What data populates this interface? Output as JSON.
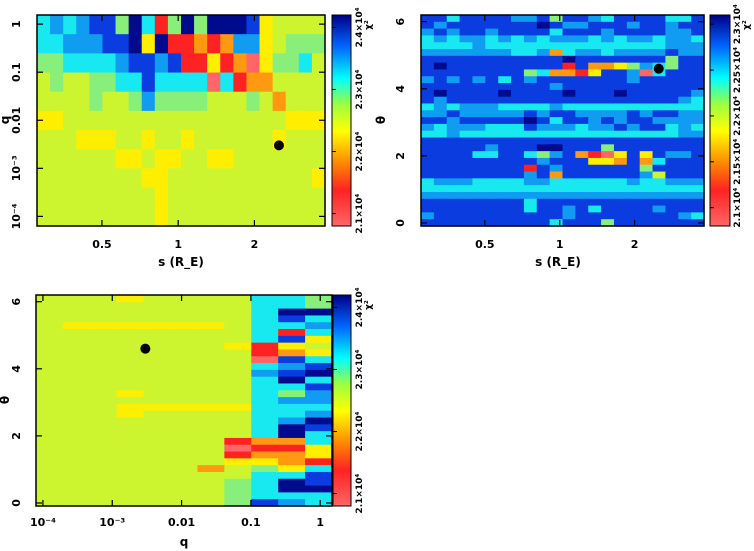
{
  "chart_data": [
    {
      "type": "heatmap",
      "id": "tl",
      "xlabel": "s (R_E)",
      "ylabel": "q",
      "xscale": "log",
      "yscale": "log",
      "xlim": [
        0.277,
        3.8
      ],
      "ylim_log10": [
        -4.2,
        0.19
      ],
      "xticks": [
        {
          "v": 0.5,
          "label": "0.5"
        },
        {
          "v": 1,
          "label": "1"
        },
        {
          "v": 2,
          "label": "2"
        }
      ],
      "yticks": [
        {
          "v": 1,
          "label": "1"
        },
        {
          "v": 0.1,
          "label": "0.1"
        },
        {
          "v": 0.01,
          "label": "0.01"
        },
        {
          "v": 0.001,
          "label": "10⁻³"
        },
        {
          "v": 0.0001,
          "label": "10⁻⁴"
        }
      ],
      "colorbar": {
        "label": "χ²",
        "ticks": [
          {
            "v": 2.1,
            "label": "2.1×10⁴"
          },
          {
            "v": 2.2,
            "label": "2.2×10⁴"
          },
          {
            "v": 2.3,
            "label": "2.3×10⁴"
          },
          {
            "v": 2.4,
            "label": "2.4×10⁴"
          }
        ],
        "range": [
          2.08,
          2.42
        ]
      },
      "levels_chi2_1e4": [
        2.1,
        2.13,
        2.17,
        2.21,
        2.24,
        2.27,
        2.31,
        2.34,
        2.37,
        2.41
      ],
      "grid_rows_top_to_bottom": [
        "6767885961595999834444",
        "6677788939112127734555",
        "5566667887811312035564",
        "4544556686666061224444",
        "4444544575555444542444",
        "3344444444444444444333",
        "4443334434434444443444",
        "4444443343344334444444",
        "4444444433444444444443",
        "4444444443444444444444",
        "4444444443444444444444"
      ],
      "best_fit": {
        "x": 2.5,
        "y": 0.003
      }
    },
    {
      "type": "heatmap",
      "id": "tr",
      "xlabel": "s (R_E)",
      "ylabel": "θ",
      "xscale": "log",
      "yscale": "linear",
      "xlim": [
        0.277,
        3.8
      ],
      "ylim": [
        -0.09,
        6.2
      ],
      "xticks": [
        {
          "v": 0.5,
          "label": "0.5"
        },
        {
          "v": 1,
          "label": "1"
        },
        {
          "v": 2,
          "label": "2"
        }
      ],
      "yticks": [
        {
          "v": 0,
          "label": "0"
        },
        {
          "v": 2,
          "label": "2"
        },
        {
          "v": 4,
          "label": "4"
        },
        {
          "v": 6,
          "label": "6"
        }
      ],
      "colorbar": {
        "label": "χ²",
        "ticks": [
          {
            "v": 2.1,
            "label": "2.1×10⁴"
          },
          {
            "v": 2.15,
            "label": "2.15×10⁴"
          },
          {
            "v": 2.2,
            "label": "2.2×10⁴"
          },
          {
            "v": 2.25,
            "label": "2.25×10⁴"
          },
          {
            "v": 2.3,
            "label": "2.3×10⁴"
          }
        ],
        "range": [
          2.08,
          2.31
        ]
      },
      "levels_chi2_1e4": [
        2.09,
        2.11,
        2.15,
        2.18,
        2.2,
        2.22,
        2.25,
        2.27,
        2.29,
        2.3
      ],
      "grid_rows_top_to_bottom": [
        "8868888778588768888668",
        "8788888889877888788788",
        "7878878888688878888778",
        "6767767676777676776776",
        "6666766666666666666777",
        "7777777667267767777877",
        "8888888888898888888588",
        "8988888888818223576588",
        "8888888856221388706888",
        "7878786878888888788888",
        "8888888888788888888888",
        "8988889888898889888887",
        "8788888888888888888876",
        "6767776666766666666666",
        "7787777787887777878877",
        "8878888898688787887777",
        "7677766687776778788676",
        "6676666666666666666677",
        "8888888888888888888888",
        "8888878889988858888888",
        "8888668865782103838778",
        "8888888887888332826888",
        "8888888818788888858888",
        "8888888878288888874888",
        "6777666677666666766777",
        "6666666666666666666666",
        "7777777777777777777777",
        "8888888868888888888888",
        "8888888868878688887888",
        "7888888888878888888876",
        "8888888888688858888888"
      ],
      "best_fit": {
        "x": 2.5,
        "y": 4.6
      }
    },
    {
      "type": "heatmap",
      "id": "bl",
      "xlabel": "q",
      "ylabel": "θ",
      "xscale": "log",
      "yscale": "linear",
      "xlim_log10": [
        -4.1,
        0.17
      ],
      "ylim": [
        -0.09,
        6.2
      ],
      "xticks": [
        {
          "v": 0.0001,
          "label": "10⁻⁴"
        },
        {
          "v": 0.001,
          "label": "10⁻³"
        },
        {
          "v": 0.01,
          "label": "0.01"
        },
        {
          "v": 0.1,
          "label": "0.1"
        },
        {
          "v": 1,
          "label": "1"
        }
      ],
      "yticks": [
        {
          "v": 0,
          "label": "0"
        },
        {
          "v": 2,
          "label": "2"
        },
        {
          "v": 4,
          "label": "4"
        },
        {
          "v": 6,
          "label": "6"
        }
      ],
      "colorbar": {
        "label": "χ²",
        "ticks": [
          {
            "v": 2.1,
            "label": "2.1×10⁴"
          },
          {
            "v": 2.2,
            "label": "2.2×10⁴"
          },
          {
            "v": 2.3,
            "label": "2.3×10⁴"
          },
          {
            "v": 2.4,
            "label": "2.4×10⁴"
          }
        ],
        "range": [
          2.08,
          2.42
        ]
      },
      "levels_chi2_1e4": [
        2.1,
        2.13,
        2.17,
        2.21,
        2.24,
        2.27,
        2.31,
        2.34,
        2.37,
        2.41
      ],
      "grid_rows_top_to_bottom": [
        "44434444665",
        "44444444665",
        "44444444699",
        "44444444686",
        "43333334667",
        "44444444616",
        "44444444683",
        "44444443134",
        "44444444123",
        "44444444086",
        "44444444678",
        "44444444789",
        "44444444696",
        "44444444668",
        "44434444657",
        "44444444677",
        "44433333666",
        "44434444667",
        "44444444679",
        "44444444698",
        "44444444696",
        "44444441226",
        "44444440113",
        "44444441223",
        "44444443321",
        "44444424536",
        "44444444668",
        "44444445698",
        "44444445699",
        "44444445666",
        "44444445876"
      ],
      "best_fit": {
        "x": 0.003,
        "y": 4.6
      }
    }
  ],
  "colors": [
    "#ff6666",
    "#ff2222",
    "#ff9a10",
    "#ffee00",
    "#ccf530",
    "#88f07a",
    "#18e8f0",
    "#109cf0",
    "#0a3ce0",
    "#000a8c"
  ]
}
